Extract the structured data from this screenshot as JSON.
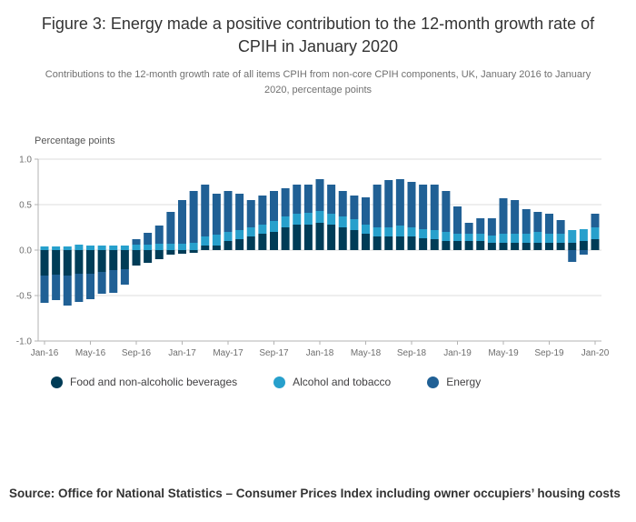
{
  "figure": {
    "title": "Figure 3: Energy made a positive contribution to the 12-month growth rate of CPIH in January 2020",
    "subtitle": "Contributions to the 12-month growth rate of all items CPIH from non-core CPIH components, UK, January 2016 to January 2020, percentage points",
    "source": "Source: Office for National Statistics – Consumer Prices Index including owner occupiers’ housing costs"
  },
  "chart_data": {
    "type": "bar",
    "stacked": true,
    "title": "Contributions to the 12-month growth rate of all items CPIH from non-core CPIH components",
    "xlabel": "",
    "ylabel": "Percentage points",
    "ylim": [
      -1.0,
      1.0
    ],
    "yticks": [
      1.0,
      0.5,
      0.0,
      -0.5,
      -1.0
    ],
    "grid": true,
    "legend_position": "bottom",
    "categories": [
      "Jan-16",
      "Feb-16",
      "Mar-16",
      "Apr-16",
      "May-16",
      "Jun-16",
      "Jul-16",
      "Aug-16",
      "Sep-16",
      "Oct-16",
      "Nov-16",
      "Dec-16",
      "Jan-17",
      "Feb-17",
      "Mar-17",
      "Apr-17",
      "May-17",
      "Jun-17",
      "Jul-17",
      "Aug-17",
      "Sep-17",
      "Oct-17",
      "Nov-17",
      "Dec-17",
      "Jan-18",
      "Feb-18",
      "Mar-18",
      "Apr-18",
      "May-18",
      "Jun-18",
      "Jul-18",
      "Aug-18",
      "Sep-18",
      "Oct-18",
      "Nov-18",
      "Dec-18",
      "Jan-19",
      "Feb-19",
      "Mar-19",
      "Apr-19",
      "May-19",
      "Jun-19",
      "Jul-19",
      "Aug-19",
      "Sep-19",
      "Oct-19",
      "Nov-19",
      "Dec-19",
      "Jan-20"
    ],
    "x_tick_labels": [
      "Jan-16",
      "May-16",
      "Sep-16",
      "Jan-17",
      "May-17",
      "Sep-17",
      "Jan-18",
      "May-18",
      "Sep-18",
      "Jan-19",
      "May-19",
      "Sep-19",
      "Jan-20"
    ],
    "series": [
      {
        "name": "Food and non-alcoholic beverages",
        "color": "#003C57",
        "values": [
          -0.28,
          -0.27,
          -0.28,
          -0.26,
          -0.26,
          -0.24,
          -0.22,
          -0.21,
          -0.17,
          -0.14,
          -0.1,
          -0.05,
          -0.04,
          -0.03,
          0.05,
          0.05,
          0.1,
          0.12,
          0.15,
          0.18,
          0.2,
          0.25,
          0.28,
          0.28,
          0.3,
          0.28,
          0.25,
          0.22,
          0.18,
          0.15,
          0.15,
          0.15,
          0.15,
          0.13,
          0.12,
          0.1,
          0.1,
          0.1,
          0.1,
          0.08,
          0.08,
          0.08,
          0.08,
          0.08,
          0.08,
          0.08,
          0.08,
          0.1,
          0.12
        ]
      },
      {
        "name": "Alcohol and tobacco",
        "color": "#27A0CC",
        "values": [
          0.04,
          0.04,
          0.04,
          0.06,
          0.05,
          0.05,
          0.05,
          0.05,
          0.06,
          0.06,
          0.07,
          0.07,
          0.07,
          0.08,
          0.1,
          0.12,
          0.1,
          0.1,
          0.1,
          0.1,
          0.12,
          0.12,
          0.12,
          0.13,
          0.13,
          0.12,
          0.12,
          0.12,
          0.1,
          0.1,
          0.1,
          0.12,
          0.1,
          0.1,
          0.1,
          0.1,
          0.08,
          0.08,
          0.08,
          0.08,
          0.1,
          0.1,
          0.1,
          0.12,
          0.1,
          0.1,
          0.14,
          0.13,
          0.13
        ]
      },
      {
        "name": "Energy",
        "color": "#206095",
        "values": [
          -0.3,
          -0.28,
          -0.33,
          -0.31,
          -0.28,
          -0.24,
          -0.25,
          -0.17,
          0.06,
          0.13,
          0.2,
          0.35,
          0.48,
          0.57,
          0.57,
          0.45,
          0.45,
          0.4,
          0.3,
          0.32,
          0.33,
          0.31,
          0.32,
          0.31,
          0.35,
          0.32,
          0.28,
          0.26,
          0.3,
          0.47,
          0.52,
          0.51,
          0.5,
          0.49,
          0.5,
          0.45,
          0.3,
          0.12,
          0.17,
          0.19,
          0.39,
          0.37,
          0.27,
          0.22,
          0.22,
          0.15,
          -0.13,
          -0.05,
          0.15
        ]
      }
    ]
  }
}
